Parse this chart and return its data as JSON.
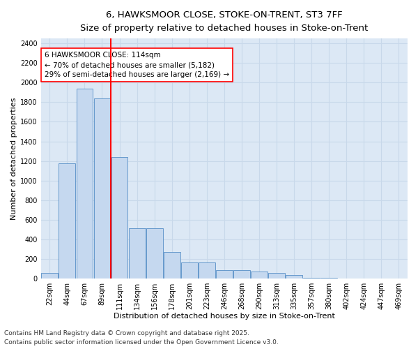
{
  "title_line1": "6, HAWKSMOOR CLOSE, STOKE-ON-TRENT, ST3 7FF",
  "title_line2": "Size of property relative to detached houses in Stoke-on-Trent",
  "xlabel": "Distribution of detached houses by size in Stoke-on-Trent",
  "ylabel": "Number of detached properties",
  "categories": [
    "22sqm",
    "44sqm",
    "67sqm",
    "89sqm",
    "111sqm",
    "134sqm",
    "156sqm",
    "178sqm",
    "201sqm",
    "223sqm",
    "246sqm",
    "268sqm",
    "290sqm",
    "313sqm",
    "335sqm",
    "357sqm",
    "380sqm",
    "402sqm",
    "424sqm",
    "447sqm",
    "469sqm"
  ],
  "values": [
    55,
    1175,
    1940,
    1840,
    1240,
    510,
    510,
    270,
    165,
    165,
    85,
    85,
    75,
    55,
    35,
    10,
    5,
    3,
    2,
    1,
    1
  ],
  "bar_color": "#c5d8ef",
  "bar_edge_color": "#6699cc",
  "grid_color": "#c8d8ea",
  "background_color": "#dce8f5",
  "property_label": "6 HAWKSMOOR CLOSE: 114sqm",
  "pct_smaller": 70,
  "n_smaller": 5182,
  "pct_larger": 29,
  "n_larger": 2169,
  "redline_x": 3.5,
  "ylim": [
    0,
    2450
  ],
  "yticks": [
    0,
    200,
    400,
    600,
    800,
    1000,
    1200,
    1400,
    1600,
    1800,
    2000,
    2200,
    2400
  ],
  "footer_line1": "Contains HM Land Registry data © Crown copyright and database right 2025.",
  "footer_line2": "Contains public sector information licensed under the Open Government Licence v3.0.",
  "title_fontsize": 9.5,
  "subtitle_fontsize": 8.5,
  "axis_label_fontsize": 8,
  "tick_fontsize": 7,
  "annotation_fontsize": 7.5,
  "footer_fontsize": 6.5
}
